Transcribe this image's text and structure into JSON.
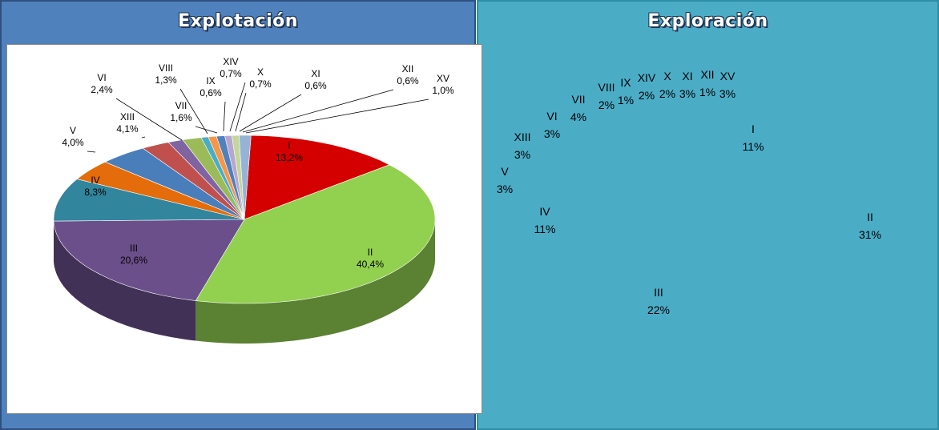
{
  "panels": {
    "left_title": "Explotación",
    "right_title": "Exploración"
  },
  "colors": {
    "left_panel_bg": "#4f81bd",
    "right_panel_bg": "#4bacc6"
  },
  "chart_data": [
    {
      "type": "pie",
      "title": "Explotación",
      "style": "3d",
      "categories": [
        "I",
        "II",
        "III",
        "IV",
        "V",
        "XIII",
        "VI",
        "VIII",
        "VII",
        "IX",
        "XIV",
        "X",
        "XI",
        "XII",
        "XV"
      ],
      "values": [
        13.2,
        40.4,
        20.6,
        8.3,
        4.0,
        4.1,
        2.4,
        1.3,
        1.6,
        0.6,
        0.7,
        0.7,
        0.6,
        0.6,
        1.0
      ],
      "labels": [
        "13,2%",
        "40,4%",
        "20,6%",
        "8,3%",
        "4,0%",
        "4,1%",
        "2,4%",
        "1,3%",
        "1,6%",
        "0,6%",
        "0,7%",
        "0,7%",
        "0,6%",
        "0,6%",
        "1,0%"
      ],
      "colors": [
        "#d40000",
        "#92d050",
        "#6b4f8a",
        "#31859c",
        "#e46c0a",
        "#4a7ebb",
        "#c0504d",
        "#8064a2",
        "#9bbb59",
        "#4bacc6",
        "#f79646",
        "#4f81bd",
        "#b7a6d0",
        "#c3d69b",
        "#95b3d7"
      ]
    },
    {
      "type": "pie",
      "title": "Exploración",
      "categories": [
        "I",
        "II",
        "III",
        "IV",
        "V",
        "XIII",
        "VI",
        "VII",
        "VIII",
        "IX",
        "XIV",
        "X",
        "XI",
        "XII",
        "XV"
      ],
      "values": [
        11,
        31,
        22,
        11,
        3,
        3,
        3,
        4,
        2,
        1,
        2,
        2,
        3,
        1,
        3
      ],
      "labels": [
        "11%",
        "31%",
        "22%",
        "11%",
        "3%",
        "3%",
        "3%",
        "4%",
        "2%",
        "1%",
        "2%",
        "2%",
        "3%",
        "1%",
        "3%"
      ]
    }
  ]
}
